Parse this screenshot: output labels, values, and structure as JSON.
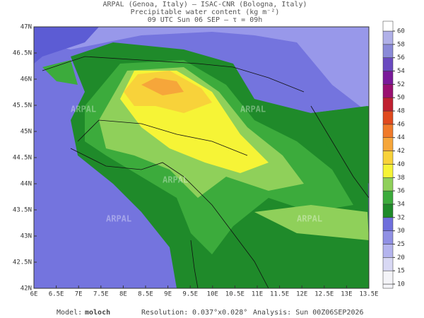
{
  "header": {
    "line1": "ARPAL (Genoa, Italy)  —  ISAC-CNR (Bologna, Italy)",
    "line2": "Precipitable water content (kg m⁻²)",
    "line3": "09 UTC Sun 06 SEP  —  τ = 09h"
  },
  "lat_labels": [
    "47N",
    "46.5N",
    "46N",
    "45.5N",
    "45N",
    "44.5N",
    "44N",
    "43.5N",
    "43N",
    "42.5N",
    "42N"
  ],
  "lon_labels": [
    "6E",
    "6.5E",
    "7E",
    "7.5E",
    "8E",
    "8.5E",
    "9E",
    "9.5E",
    "10E",
    "10.5E",
    "11E",
    "11.5E",
    "12E",
    "12.5E",
    "13E",
    "13.5E"
  ],
  "watermark": "ARPAL",
  "colorbar": {
    "levels": [
      10,
      15,
      20,
      25,
      30,
      32,
      34,
      36,
      38,
      40,
      42,
      44,
      46,
      48,
      50,
      52,
      54,
      56,
      58,
      60
    ],
    "colors": [
      "#f4f4f8",
      "#d8d8f4",
      "#b4b4ee",
      "#9090e4",
      "#6f6fdc",
      "#1f8a2a",
      "#3cab3c",
      "#8fd05a",
      "#f6f436",
      "#f8d23a",
      "#f6a63a",
      "#f07a2a",
      "#e04a1e",
      "#c02030",
      "#9a1070",
      "#7a1a9a",
      "#6a4ac0",
      "#8a8ad8",
      "#b0b0e8"
    ]
  },
  "footer": {
    "model_label": "Model:",
    "model": "moloch",
    "resolution_label": "Resolution:",
    "resolution": "0.037°x0.028°",
    "analysis": "Analysis: Sun 00Z06SEP2026"
  }
}
